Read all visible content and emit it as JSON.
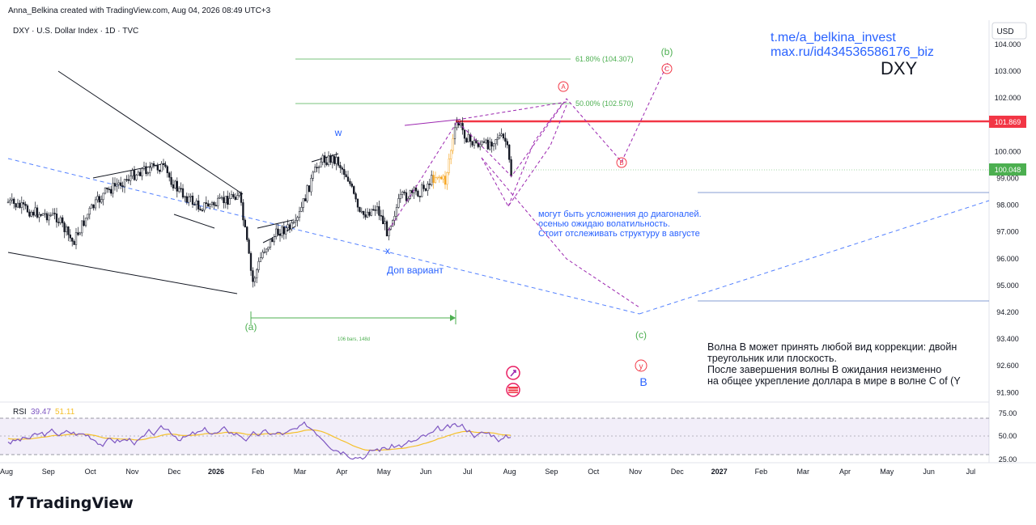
{
  "header": {
    "created": "Anna_Belkina created with TradingView.com, Aug 04, 2026 08:49 UTC+3",
    "symbol": "DXY · U.S. Dollar Index · 1D · TVC",
    "currency": "USD"
  },
  "watermark": {
    "link1": "t.me/a_belkina_invest",
    "link2": "max.ru/id434536586176_biz",
    "ticker": "DXY"
  },
  "colors": {
    "candle": "#131722",
    "accent_blue": "#2962ff",
    "red_level": "#f23645",
    "green": "#4caf50",
    "projection": "#9c27b0",
    "rsi_line": "#7e57c2",
    "rsi_ma": "#f5c02a"
  },
  "chart_data": {
    "type": "candlestick",
    "y_axis": {
      "ticks": [
        "104.000",
        "103.000",
        "102.000",
        "101.000",
        "100.000",
        "99.000",
        "98.000",
        "97.000",
        "96.000",
        "95.000",
        "94.200",
        "93.400",
        "92.600",
        "91.900"
      ],
      "price_tags": [
        {
          "value": "101.869",
          "color": "#f23645"
        },
        {
          "value": "100.048",
          "color": "#4caf50"
        }
      ]
    },
    "x_axis": {
      "ticks": [
        "Aug",
        "Sep",
        "Oct",
        "Nov",
        "Dec",
        "2026",
        "Feb",
        "Mar",
        "Apr",
        "May",
        "Jun",
        "Jul",
        "Aug",
        "Sep",
        "Oct",
        "Nov",
        "Dec",
        "2027",
        "Feb",
        "Mar",
        "Apr",
        "May",
        "Jun",
        "Jul"
      ]
    },
    "fib_levels": [
      {
        "label": "61.80% (104.307)",
        "value": 104.307
      },
      {
        "label": "50.00% (102.570)",
        "value": 102.57
      }
    ],
    "horizontal_levels": [
      101.869
    ],
    "measure": {
      "label": "106 bars, 148d"
    },
    "wave_labels": [
      "w",
      "x",
      "(a)",
      "(b)",
      "(c)",
      "A",
      "B",
      "C",
      "y",
      "B"
    ],
    "rsi": {
      "label": "RSI",
      "value": "39.47",
      "ma_value": "51.11",
      "ticks": [
        "75.00",
        "50.00",
        "25.00"
      ],
      "upper": 70,
      "middle": 50,
      "lower": 30
    }
  },
  "annotations": {
    "alt_variant": "Доп вариант",
    "note1_line1": "могут быть усложнения до диагоналей.",
    "note1_line2": "осенью ожидаю волатильность.",
    "note1_line3": "Стоит отслеживать структуру в августе",
    "note2_line1": "Волна В может принять любой вид коррекции: двойн",
    "note2_line2": "треугольник или плоскость.",
    "note2_line3": "После завершения волны В ожидания неизменно",
    "note2_line4": "на общее укрепление доллара в мире в волне С of (Y"
  },
  "footer": {
    "brand": "TradingView"
  }
}
